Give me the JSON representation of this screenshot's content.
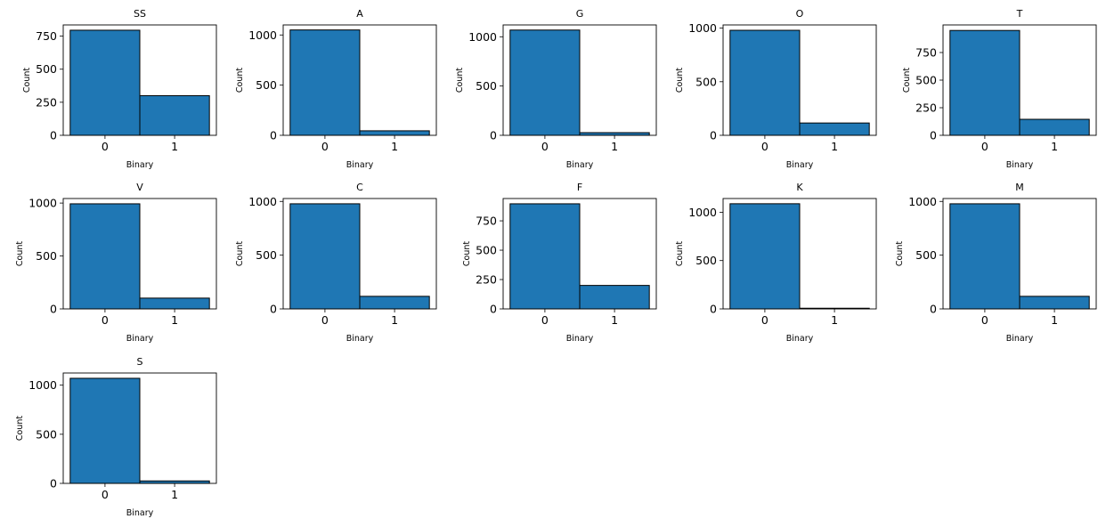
{
  "chart_data": [
    {
      "type": "bar",
      "title": "SS",
      "xlabel": "Binary",
      "ylabel": "Count",
      "categories": [
        "0",
        "1"
      ],
      "values": [
        795,
        300
      ],
      "ylim": [
        0,
        835
      ],
      "yticks": [
        0,
        250,
        500,
        750
      ]
    },
    {
      "type": "bar",
      "title": "A",
      "xlabel": "Binary",
      "ylabel": "Count",
      "categories": [
        "0",
        "1"
      ],
      "values": [
        1050,
        45
      ],
      "ylim": [
        0,
        1100
      ],
      "yticks": [
        0,
        500,
        1000
      ]
    },
    {
      "type": "bar",
      "title": "G",
      "xlabel": "Binary",
      "ylabel": "Count",
      "categories": [
        "0",
        "1"
      ],
      "values": [
        1068,
        27
      ],
      "ylim": [
        0,
        1120
      ],
      "yticks": [
        0,
        500,
        1000
      ]
    },
    {
      "type": "bar",
      "title": "O",
      "xlabel": "Binary",
      "ylabel": "Count",
      "categories": [
        "0",
        "1"
      ],
      "values": [
        980,
        115
      ],
      "ylim": [
        0,
        1030
      ],
      "yticks": [
        0,
        500,
        1000
      ]
    },
    {
      "type": "bar",
      "title": "T",
      "xlabel": "Binary",
      "ylabel": "Count",
      "categories": [
        "0",
        "1"
      ],
      "values": [
        950,
        145
      ],
      "ylim": [
        0,
        1000
      ],
      "yticks": [
        0,
        250,
        500,
        750
      ]
    },
    {
      "type": "bar",
      "title": "V",
      "xlabel": "Binary",
      "ylabel": "Count",
      "categories": [
        "0",
        "1"
      ],
      "values": [
        993,
        102
      ],
      "ylim": [
        0,
        1043
      ],
      "yticks": [
        0,
        500,
        1000
      ]
    },
    {
      "type": "bar",
      "title": "C",
      "xlabel": "Binary",
      "ylabel": "Count",
      "categories": [
        "0",
        "1"
      ],
      "values": [
        978,
        117
      ],
      "ylim": [
        0,
        1027
      ],
      "yticks": [
        0,
        500,
        1000
      ]
    },
    {
      "type": "bar",
      "title": "F",
      "xlabel": "Binary",
      "ylabel": "Count",
      "categories": [
        "0",
        "1"
      ],
      "values": [
        895,
        200
      ],
      "ylim": [
        0,
        940
      ],
      "yticks": [
        0,
        250,
        500,
        750
      ]
    },
    {
      "type": "bar",
      "title": "K",
      "xlabel": "Binary",
      "ylabel": "Count",
      "categories": [
        "0",
        "1"
      ],
      "values": [
        1088,
        7
      ],
      "ylim": [
        0,
        1142
      ],
      "yticks": [
        0,
        500,
        1000
      ]
    },
    {
      "type": "bar",
      "title": "M",
      "xlabel": "Binary",
      "ylabel": "Count",
      "categories": [
        "0",
        "1"
      ],
      "values": [
        978,
        117
      ],
      "ylim": [
        0,
        1027
      ],
      "yticks": [
        0,
        500,
        1000
      ]
    },
    {
      "type": "bar",
      "title": "S",
      "xlabel": "Binary",
      "ylabel": "Count",
      "categories": [
        "0",
        "1"
      ],
      "values": [
        1070,
        25
      ],
      "ylim": [
        0,
        1124
      ],
      "yticks": [
        0,
        500,
        1000
      ]
    }
  ],
  "colors": {
    "bar": "#1f77b4",
    "edge": "#000000"
  }
}
